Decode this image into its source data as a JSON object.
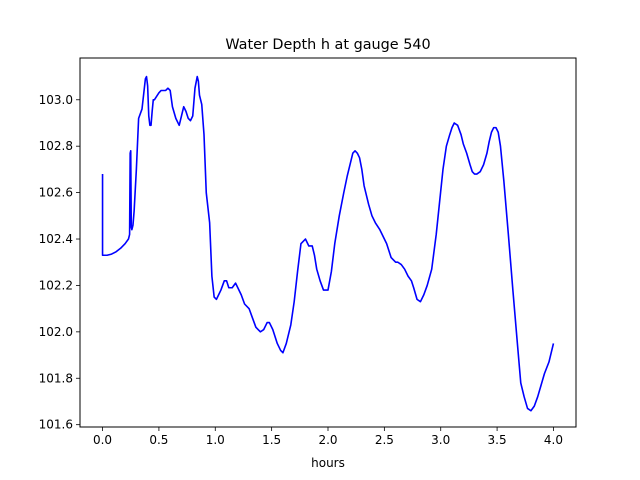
{
  "chart_data": {
    "type": "line",
    "title": "Water Depth h at gauge 540",
    "xlabel": "hours",
    "ylabel": "",
    "xlim": [
      -0.2,
      4.2
    ],
    "ylim": [
      101.59,
      103.18
    ],
    "xticks": [
      0.0,
      0.5,
      1.0,
      1.5,
      2.0,
      2.5,
      3.0,
      3.5,
      4.0
    ],
    "xtick_labels": [
      "0.0",
      "0.5",
      "1.0",
      "1.5",
      "2.0",
      "2.5",
      "3.0",
      "3.5",
      "4.0"
    ],
    "yticks": [
      101.6,
      101.8,
      102.0,
      102.2,
      102.4,
      102.6,
      102.8,
      103.0
    ],
    "ytick_labels": [
      "101.6",
      "101.8",
      "102.0",
      "102.2",
      "102.4",
      "102.6",
      "102.8",
      "103.0"
    ],
    "grid": false,
    "series": [
      {
        "color": "#0000ff",
        "x": [
          0.0,
          0.0,
          0.005,
          0.04,
          0.08,
          0.12,
          0.16,
          0.2,
          0.23,
          0.24,
          0.245,
          0.25,
          0.255,
          0.26,
          0.265,
          0.27,
          0.28,
          0.3,
          0.32,
          0.35,
          0.38,
          0.39,
          0.4,
          0.41,
          0.42,
          0.43,
          0.44,
          0.45,
          0.46,
          0.5,
          0.52,
          0.56,
          0.58,
          0.6,
          0.62,
          0.65,
          0.68,
          0.7,
          0.72,
          0.74,
          0.76,
          0.78,
          0.8,
          0.82,
          0.84,
          0.85,
          0.86,
          0.88,
          0.9,
          0.92,
          0.95,
          0.97,
          0.99,
          1.01,
          1.03,
          1.05,
          1.08,
          1.1,
          1.12,
          1.15,
          1.18,
          1.2,
          1.23,
          1.26,
          1.3,
          1.33,
          1.36,
          1.38,
          1.4,
          1.43,
          1.46,
          1.48,
          1.51,
          1.55,
          1.58,
          1.6,
          1.63,
          1.67,
          1.7,
          1.73,
          1.76,
          1.8,
          1.83,
          1.86,
          1.88,
          1.9,
          1.93,
          1.96,
          2.0,
          2.03,
          2.06,
          2.1,
          2.14,
          2.17,
          2.2,
          2.22,
          2.24,
          2.26,
          2.28,
          2.3,
          2.32,
          2.36,
          2.39,
          2.42,
          2.46,
          2.48,
          2.52,
          2.56,
          2.6,
          2.62,
          2.65,
          2.68,
          2.71,
          2.74,
          2.76,
          2.79,
          2.82,
          2.85,
          2.88,
          2.92,
          2.96,
          2.99,
          3.02,
          3.05,
          3.08,
          3.1,
          3.12,
          3.15,
          3.18,
          3.2,
          3.23,
          3.26,
          3.28,
          3.3,
          3.32,
          3.35,
          3.38,
          3.41,
          3.43,
          3.45,
          3.47,
          3.49,
          3.51,
          3.53,
          3.56,
          3.6,
          3.64,
          3.68,
          3.71,
          3.74,
          3.77,
          3.8,
          3.83,
          3.86,
          3.89,
          3.92,
          3.96,
          4.0
        ],
        "y": [
          102.68,
          102.33,
          102.33,
          102.33,
          102.335,
          102.345,
          102.36,
          102.38,
          102.4,
          102.42,
          102.77,
          102.78,
          102.45,
          102.44,
          102.45,
          102.46,
          102.52,
          102.7,
          102.92,
          102.96,
          103.09,
          103.1,
          103.06,
          102.93,
          102.89,
          102.89,
          102.95,
          103.0,
          103.0,
          103.03,
          103.04,
          103.04,
          103.05,
          103.04,
          102.97,
          102.92,
          102.89,
          102.93,
          102.97,
          102.95,
          102.92,
          102.91,
          102.93,
          103.05,
          103.1,
          103.08,
          103.02,
          102.98,
          102.85,
          102.6,
          102.47,
          102.24,
          102.15,
          102.14,
          102.16,
          102.18,
          102.22,
          102.22,
          102.19,
          102.19,
          102.21,
          102.19,
          102.16,
          102.12,
          102.1,
          102.06,
          102.02,
          102.01,
          102.0,
          102.01,
          102.04,
          102.04,
          102.01,
          101.95,
          101.92,
          101.91,
          101.95,
          102.03,
          102.13,
          102.26,
          102.38,
          102.4,
          102.37,
          102.37,
          102.33,
          102.27,
          102.22,
          102.18,
          102.18,
          102.26,
          102.38,
          102.5,
          102.6,
          102.67,
          102.73,
          102.77,
          102.78,
          102.77,
          102.75,
          102.7,
          102.63,
          102.55,
          102.5,
          102.47,
          102.44,
          102.42,
          102.38,
          102.32,
          102.3,
          102.3,
          102.29,
          102.27,
          102.24,
          102.22,
          102.19,
          102.14,
          102.13,
          102.16,
          102.2,
          102.27,
          102.42,
          102.56,
          102.7,
          102.8,
          102.85,
          102.88,
          102.9,
          102.89,
          102.85,
          102.81,
          102.77,
          102.72,
          102.69,
          102.68,
          102.68,
          102.69,
          102.72,
          102.77,
          102.82,
          102.86,
          102.88,
          102.88,
          102.86,
          102.8,
          102.65,
          102.42,
          102.18,
          101.95,
          101.78,
          101.72,
          101.67,
          101.66,
          101.68,
          101.72,
          101.77,
          101.82,
          101.87,
          101.95
        ]
      }
    ]
  }
}
